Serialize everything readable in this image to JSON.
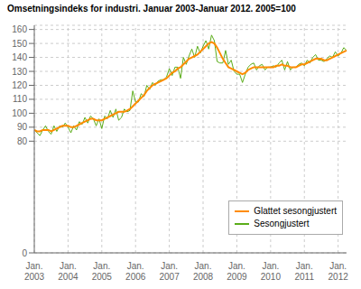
{
  "chart_data": {
    "type": "line",
    "title": "Omsetningsindeks for industri. Januar 2003-Januar 2012. 2005=100",
    "categories": [
      "Jan.\n2003",
      null,
      null,
      null,
      null,
      null,
      null,
      null,
      null,
      null,
      null,
      null,
      "Jan.\n2004",
      null,
      null,
      null,
      null,
      null,
      null,
      null,
      null,
      null,
      null,
      null,
      "Jan.\n2005",
      null,
      null,
      null,
      null,
      null,
      null,
      null,
      null,
      null,
      null,
      null,
      "Jan.\n2006",
      null,
      null,
      null,
      null,
      null,
      null,
      null,
      null,
      null,
      null,
      null,
      "Jan.\n2007",
      null,
      null,
      null,
      null,
      null,
      null,
      null,
      null,
      null,
      null,
      null,
      "Jan.\n2008",
      null,
      null,
      null,
      null,
      null,
      null,
      null,
      null,
      null,
      null,
      null,
      "Jan.\n2009",
      null,
      null,
      null,
      null,
      null,
      null,
      null,
      null,
      null,
      null,
      null,
      "Jan.\n2010",
      null,
      null,
      null,
      null,
      null,
      null,
      null,
      null,
      null,
      null,
      null,
      "Jan.\n2011",
      null,
      null,
      null,
      null,
      null,
      null,
      null,
      null,
      null,
      null,
      null,
      "Jan.\n2012",
      null,
      null,
      null
    ],
    "series": [
      {
        "name": "Sesongjustert",
        "color": "#5BAD1A",
        "values": [
          88,
          86,
          84,
          88,
          91,
          87,
          85,
          91,
          87,
          91,
          90,
          93,
          90,
          86,
          91,
          88,
          94,
          92,
          97,
          93,
          98,
          96,
          91,
          96,
          89,
          98,
          96,
          102,
          97,
          103,
          95,
          97,
          103,
          101,
          102,
          116,
          108,
          108,
          114,
          112,
          120,
          117,
          122,
          120,
          123,
          124,
          124,
          126,
          132,
          127,
          133,
          133,
          125,
          140,
          135,
          141,
          146,
          140,
          148,
          143,
          148,
          152,
          146,
          156,
          152,
          137,
          136,
          136,
          145,
          135,
          138,
          130,
          128,
          128,
          122,
          128,
          133,
          135,
          136,
          131,
          134,
          135,
          131,
          133,
          133,
          134,
          133,
          136,
          138,
          131,
          137,
          131,
          133,
          133,
          135,
          136,
          134,
          138,
          136,
          140,
          142,
          138,
          138,
          137,
          139,
          141,
          140,
          144,
          141,
          143,
          147,
          145
        ]
      },
      {
        "name": "Glattet sesongjustert",
        "color": "#FF8C00",
        "values": [
          88,
          87,
          87,
          88,
          88,
          88,
          87,
          88,
          89,
          90,
          91,
          91,
          91,
          90,
          90,
          91,
          92,
          93,
          94,
          95,
          96,
          96,
          95,
          95,
          95,
          96,
          97,
          98,
          99,
          100,
          101,
          101,
          101,
          102,
          103,
          105,
          107,
          109,
          111,
          113,
          116,
          118,
          120,
          121,
          122,
          123,
          124,
          125,
          127,
          129,
          130,
          132,
          133,
          135,
          137,
          139,
          140,
          141,
          142,
          144,
          146,
          148,
          150,
          151,
          150,
          147,
          143,
          139,
          136,
          133,
          132,
          131,
          130,
          129,
          128,
          129,
          131,
          132,
          133,
          133,
          133,
          133,
          133,
          133,
          133,
          133,
          134,
          134,
          135,
          134,
          134,
          133,
          133,
          133,
          134,
          135,
          135,
          136,
          137,
          138,
          139,
          139,
          139,
          138,
          138,
          139,
          140,
          141,
          142,
          143,
          144,
          145
        ]
      }
    ],
    "ylim": [
      0,
      163
    ],
    "yticks": [
      0,
      80,
      90,
      100,
      110,
      120,
      130,
      140,
      150,
      160
    ],
    "grid": true,
    "legend": "lower right"
  }
}
